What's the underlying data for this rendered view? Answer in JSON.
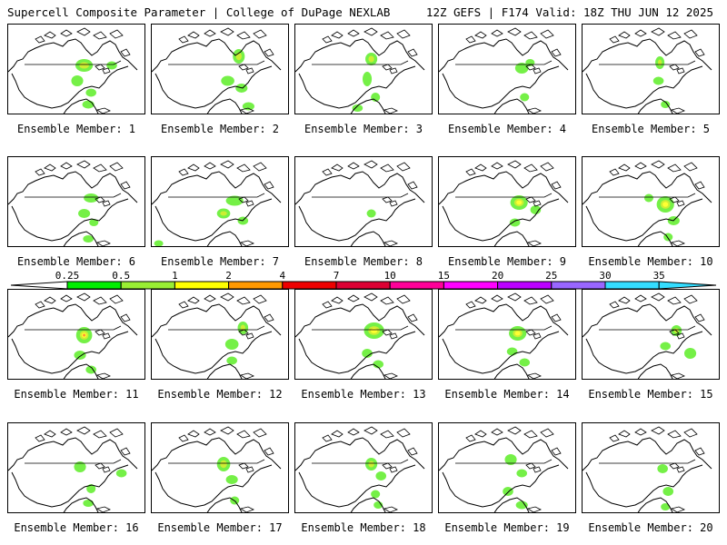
{
  "header": {
    "left": "Supercell Composite Parameter | College of DuPage NEXLAB",
    "right": "12Z GEFS | F174 Valid: 18Z THU JUN 12 2025"
  },
  "member_label_prefix": "Ensemble Member: ",
  "members": [
    {
      "id": 1,
      "blobs": [
        [
          0.55,
          0.45,
          0.1,
          0.1,
          1
        ],
        [
          0.5,
          0.62,
          0.06,
          0.08,
          0
        ],
        [
          0.6,
          0.75,
          0.05,
          0.05,
          0
        ],
        [
          0.75,
          0.45,
          0.05,
          0.05,
          0
        ],
        [
          0.58,
          0.88,
          0.06,
          0.05,
          0
        ]
      ]
    },
    {
      "id": 2,
      "blobs": [
        [
          0.63,
          0.35,
          0.06,
          0.12,
          1
        ],
        [
          0.55,
          0.62,
          0.07,
          0.07,
          0
        ],
        [
          0.65,
          0.7,
          0.06,
          0.06,
          0
        ],
        [
          0.7,
          0.9,
          0.06,
          0.05,
          0
        ]
      ]
    },
    {
      "id": 3,
      "blobs": [
        [
          0.55,
          0.38,
          0.06,
          0.1,
          1
        ],
        [
          0.52,
          0.6,
          0.04,
          0.12,
          0
        ],
        [
          0.58,
          0.8,
          0.04,
          0.06,
          0
        ],
        [
          0.45,
          0.92,
          0.05,
          0.04,
          0
        ]
      ]
    },
    {
      "id": 4,
      "blobs": [
        [
          0.6,
          0.48,
          0.07,
          0.08,
          0
        ],
        [
          0.66,
          0.42,
          0.04,
          0.04,
          0
        ],
        [
          0.62,
          0.8,
          0.04,
          0.05,
          0
        ]
      ]
    },
    {
      "id": 5,
      "blobs": [
        [
          0.56,
          0.42,
          0.04,
          0.1,
          1
        ],
        [
          0.55,
          0.62,
          0.05,
          0.05,
          0
        ],
        [
          0.6,
          0.88,
          0.04,
          0.04,
          0
        ]
      ]
    },
    {
      "id": 6,
      "blobs": [
        [
          0.6,
          0.45,
          0.08,
          0.06,
          0
        ],
        [
          0.55,
          0.62,
          0.06,
          0.06,
          0
        ],
        [
          0.62,
          0.72,
          0.04,
          0.04,
          0
        ],
        [
          0.58,
          0.9,
          0.05,
          0.04,
          0
        ]
      ]
    },
    {
      "id": 7,
      "blobs": [
        [
          0.6,
          0.48,
          0.1,
          0.07,
          0
        ],
        [
          0.52,
          0.62,
          0.07,
          0.07,
          1
        ],
        [
          0.66,
          0.7,
          0.05,
          0.05,
          0
        ],
        [
          0.05,
          0.95,
          0.04,
          0.03,
          0
        ]
      ]
    },
    {
      "id": 8,
      "blobs": [
        [
          0.55,
          0.62,
          0.04,
          0.05,
          0
        ]
      ]
    },
    {
      "id": 9,
      "blobs": [
        [
          0.58,
          0.5,
          0.1,
          0.12,
          2
        ],
        [
          0.7,
          0.58,
          0.05,
          0.06,
          0
        ],
        [
          0.55,
          0.72,
          0.05,
          0.05,
          0
        ]
      ]
    },
    {
      "id": 10,
      "blobs": [
        [
          0.6,
          0.52,
          0.1,
          0.14,
          2
        ],
        [
          0.48,
          0.45,
          0.04,
          0.05,
          0
        ],
        [
          0.66,
          0.7,
          0.06,
          0.06,
          0
        ],
        [
          0.62,
          0.88,
          0.04,
          0.05,
          0
        ]
      ]
    },
    {
      "id": 11,
      "blobs": [
        [
          0.55,
          0.5,
          0.09,
          0.14,
          3
        ],
        [
          0.52,
          0.72,
          0.06,
          0.06,
          0
        ],
        [
          0.6,
          0.88,
          0.05,
          0.05,
          0
        ]
      ]
    },
    {
      "id": 12,
      "blobs": [
        [
          0.66,
          0.42,
          0.05,
          0.1,
          1
        ],
        [
          0.58,
          0.6,
          0.07,
          0.08,
          0
        ],
        [
          0.58,
          0.78,
          0.05,
          0.05,
          0
        ]
      ]
    },
    {
      "id": 13,
      "blobs": [
        [
          0.57,
          0.45,
          0.12,
          0.14,
          2
        ],
        [
          0.52,
          0.7,
          0.05,
          0.06,
          0
        ],
        [
          0.6,
          0.82,
          0.05,
          0.05,
          0
        ]
      ]
    },
    {
      "id": 14,
      "blobs": [
        [
          0.57,
          0.48,
          0.1,
          0.12,
          2
        ],
        [
          0.53,
          0.68,
          0.05,
          0.05,
          0
        ],
        [
          0.62,
          0.8,
          0.05,
          0.05,
          0
        ]
      ]
    },
    {
      "id": 15,
      "blobs": [
        [
          0.68,
          0.45,
          0.05,
          0.08,
          1
        ],
        [
          0.78,
          0.7,
          0.06,
          0.08,
          0
        ],
        [
          0.6,
          0.62,
          0.05,
          0.05,
          0
        ]
      ]
    },
    {
      "id": 16,
      "blobs": [
        [
          0.52,
          0.48,
          0.06,
          0.08,
          0
        ],
        [
          0.82,
          0.55,
          0.05,
          0.05,
          0
        ],
        [
          0.6,
          0.72,
          0.04,
          0.06,
          0
        ],
        [
          0.58,
          0.88,
          0.05,
          0.04,
          0
        ]
      ]
    },
    {
      "id": 17,
      "blobs": [
        [
          0.52,
          0.45,
          0.07,
          0.12,
          1
        ],
        [
          0.58,
          0.62,
          0.06,
          0.06,
          0
        ],
        [
          0.6,
          0.85,
          0.04,
          0.05,
          0
        ]
      ]
    },
    {
      "id": 18,
      "blobs": [
        [
          0.55,
          0.45,
          0.06,
          0.1,
          1
        ],
        [
          0.62,
          0.58,
          0.05,
          0.06,
          0
        ],
        [
          0.58,
          0.78,
          0.04,
          0.05,
          0
        ],
        [
          0.6,
          0.9,
          0.04,
          0.04,
          0
        ]
      ]
    },
    {
      "id": 19,
      "blobs": [
        [
          0.52,
          0.4,
          0.06,
          0.08,
          0
        ],
        [
          0.6,
          0.55,
          0.05,
          0.05,
          0
        ],
        [
          0.5,
          0.75,
          0.05,
          0.06,
          0
        ],
        [
          0.6,
          0.9,
          0.06,
          0.05,
          0
        ]
      ]
    },
    {
      "id": 20,
      "blobs": [
        [
          0.58,
          0.5,
          0.05,
          0.06,
          0
        ],
        [
          0.62,
          0.75,
          0.05,
          0.06,
          0
        ],
        [
          0.6,
          0.92,
          0.04,
          0.04,
          0
        ]
      ]
    }
  ],
  "legend": {
    "ticks": [
      "0.25",
      "0.5",
      "1",
      "2",
      "4",
      "7",
      "10",
      "15",
      "20",
      "25",
      "30",
      "35"
    ],
    "colors": [
      "#ffffff",
      "#00ee00",
      "#99ee33",
      "#ffff00",
      "#ff9900",
      "#ee0000",
      "#dd0033",
      "#ff0099",
      "#ff00ff",
      "#bb00ff",
      "#9966ff",
      "#33ddff"
    ],
    "left_color": "#ffffff",
    "right_color": "#33ddff"
  },
  "blob_colors": [
    "#66ee33",
    "#ccee33",
    "#ffff33",
    "#ff9933"
  ]
}
